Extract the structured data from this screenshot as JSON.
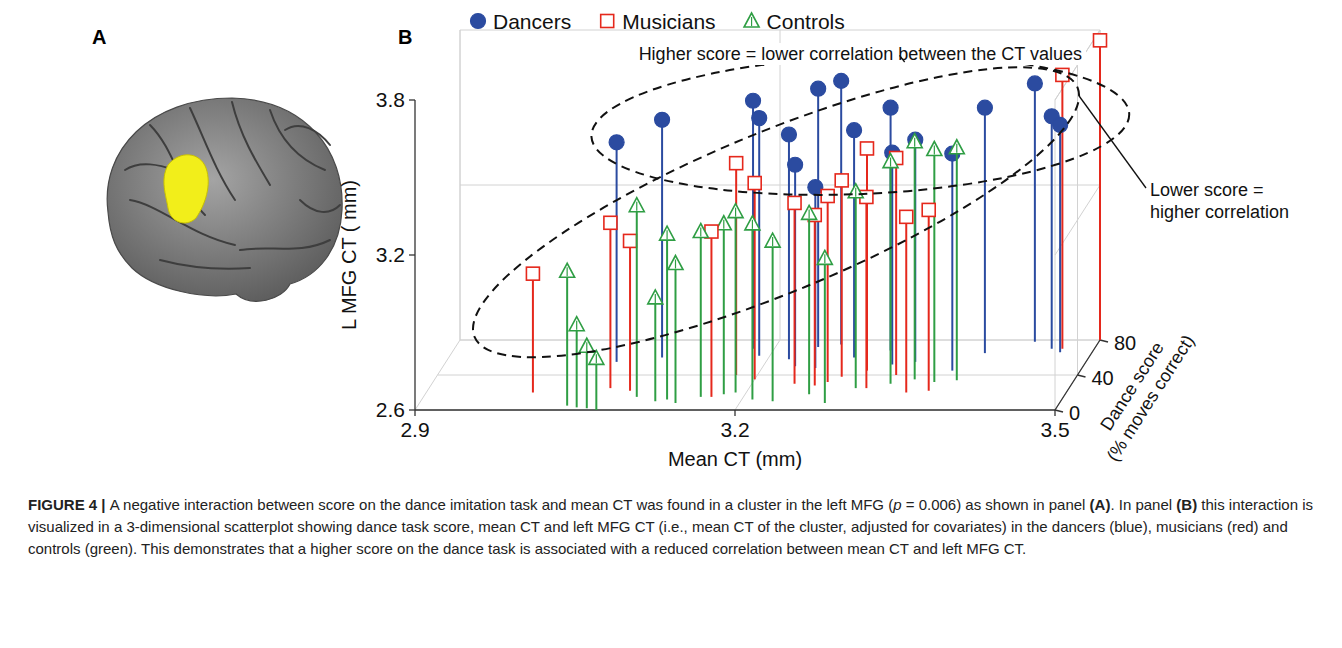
{
  "chart_data": {
    "type": "scatter3d",
    "x_label": "Mean CT (mm)",
    "y_label": "L MFG CT ( mm)",
    "z_label": "Dance score (% moves correct)",
    "xlim": [
      2.9,
      3.5
    ],
    "xticks": [
      2.9,
      3.2,
      3.5
    ],
    "ylim": [
      2.6,
      3.8
    ],
    "yticks": [
      2.6,
      3.2,
      3.8
    ],
    "zlim": [
      0,
      80
    ],
    "zticks": [
      0,
      40,
      80
    ],
    "grid": true,
    "legend": "top",
    "annotations": [
      "Higher score = lower correlation between the CT values",
      "Lower score = higher correlation"
    ],
    "series": [
      {
        "name": "Dancers",
        "color": "#2b4ba0",
        "marker": "circle",
        "x": [
          3.06,
          3.1,
          3.18,
          3.19,
          3.22,
          3.24,
          3.26,
          3.23,
          3.25,
          3.28,
          3.31,
          3.34,
          3.32,
          3.4,
          3.44,
          3.46,
          3.47,
          3.38
        ],
        "values": [
          3.45,
          3.52,
          3.56,
          3.52,
          3.47,
          3.6,
          3.62,
          3.38,
          3.3,
          3.48,
          3.54,
          3.46,
          3.42,
          3.55,
          3.6,
          3.5,
          3.48,
          3.44
        ],
        "dance_score": [
          55,
          60,
          70,
          62,
          58,
          72,
          75,
          50,
          48,
          60,
          68,
          55,
          52,
          65,
          78,
          70,
          66,
          45
        ]
      },
      {
        "name": "Musicians",
        "color": "#e5281c",
        "marker": "square-open",
        "x": [
          3.0,
          3.07,
          3.09,
          3.17,
          3.18,
          3.2,
          3.24,
          3.26,
          3.27,
          3.28,
          3.3,
          3.31,
          3.33,
          3.35,
          3.37,
          3.47,
          3.5
        ],
        "values": [
          3.06,
          3.24,
          3.18,
          3.24,
          3.42,
          3.36,
          3.3,
          3.26,
          3.32,
          3.36,
          3.46,
          3.34,
          3.44,
          3.28,
          3.3,
          3.66,
          3.76
        ],
        "dance_score": [
          20,
          25,
          22,
          15,
          40,
          35,
          30,
          28,
          32,
          38,
          45,
          25,
          40,
          20,
          22,
          70,
          80
        ]
      },
      {
        "name": "Controls",
        "color": "#2f9e44",
        "marker": "triangle-open",
        "x": [
          3.04,
          3.05,
          3.06,
          3.07,
          3.1,
          3.12,
          3.13,
          3.14,
          3.16,
          3.18,
          3.19,
          3.21,
          3.23,
          3.26,
          3.28,
          3.3,
          3.33,
          3.35,
          3.37,
          3.39
        ],
        "values": [
          3.12,
          2.92,
          2.84,
          2.8,
          3.34,
          3.0,
          3.24,
          3.14,
          3.24,
          3.26,
          3.3,
          3.28,
          3.22,
          3.3,
          3.16,
          3.36,
          3.46,
          3.52,
          3.5,
          3.5
        ],
        "dance_score": [
          5,
          3,
          2,
          0,
          15,
          10,
          12,
          8,
          15,
          18,
          20,
          12,
          10,
          18,
          8,
          25,
          30,
          35,
          32,
          34
        ]
      }
    ]
  },
  "panel_labels": [
    "A",
    "B"
  ],
  "caption": {
    "runs": [
      {
        "text": "FIGURE 4 | ",
        "style": "bold"
      },
      {
        "text": "A negative interaction between score on the dance imitation task and mean CT was found in a cluster in the left MFG (",
        "style": "normal"
      },
      {
        "text": "p",
        "style": "italic"
      },
      {
        "text": " = 0.006) as shown in panel ",
        "style": "normal"
      },
      {
        "text": "(A)",
        "style": "bold"
      },
      {
        "text": ". In panel ",
        "style": "normal"
      },
      {
        "text": "(B)",
        "style": "bold"
      },
      {
        "text": " this interaction is visualized in a 3-dimensional scatterplot showing dance task score, mean CT and left MFG CT (i.e., mean CT of the cluster, adjusted for covariates) in the dancers (blue), musicians (red) and controls (green). This demonstrates that a higher score on the dance task is associated with a reduced correlation between mean CT and left MFG CT.",
        "style": "normal"
      }
    ]
  }
}
